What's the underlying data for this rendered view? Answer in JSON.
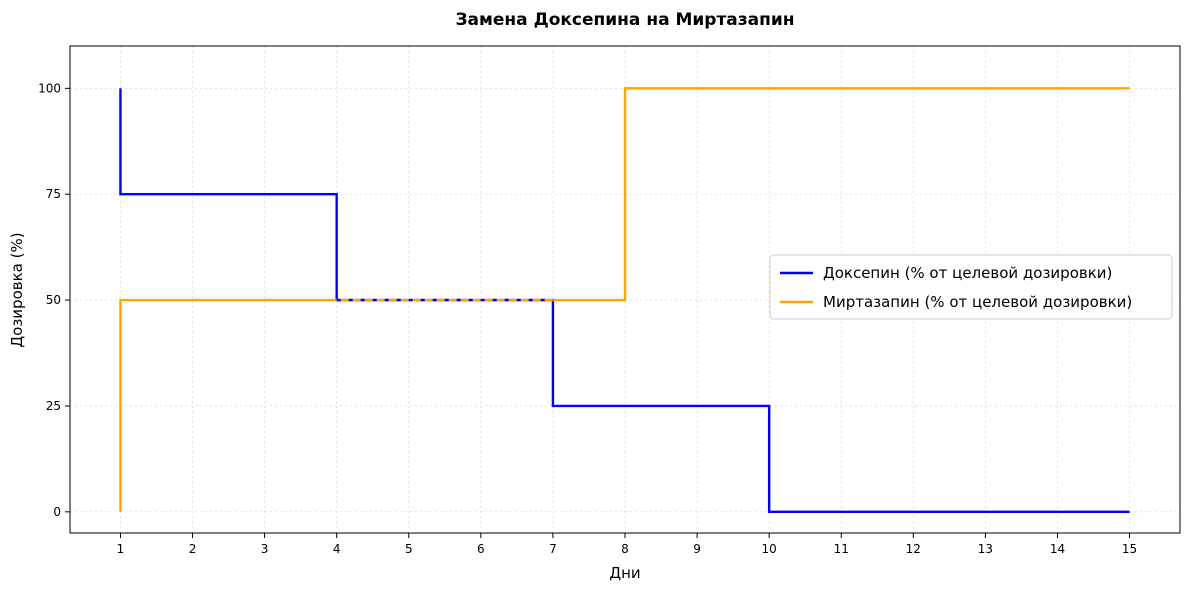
{
  "chart_data": {
    "type": "line",
    "step": "post",
    "title": "Замена Доксепина на Миртазапин",
    "xlabel": "Дни",
    "ylabel": "Дозировка (%)",
    "xlim": [
      0.3,
      15.7
    ],
    "ylim": [
      -5,
      110
    ],
    "xticks": [
      1,
      2,
      3,
      4,
      5,
      6,
      7,
      8,
      9,
      10,
      11,
      12,
      13,
      14,
      15
    ],
    "yticks": [
      0,
      25,
      50,
      75,
      100
    ],
    "grid": true,
    "legend_position": "center-right",
    "series": [
      {
        "name": "Доксепин (% от целевой дозировки)",
        "color": "#0000ff",
        "points": [
          [
            1,
            100
          ],
          [
            1,
            75
          ],
          [
            4,
            75
          ],
          [
            4,
            50
          ],
          [
            7,
            50
          ],
          [
            7,
            25
          ],
          [
            10,
            25
          ],
          [
            10,
            0
          ],
          [
            15,
            0
          ]
        ]
      },
      {
        "name": "Миртазапин (% от целевой дозировки)",
        "color": "#ffa500",
        "points": [
          [
            1,
            0
          ],
          [
            1,
            50
          ],
          [
            8,
            50
          ],
          [
            8,
            100
          ],
          [
            15,
            100
          ]
        ]
      }
    ]
  }
}
